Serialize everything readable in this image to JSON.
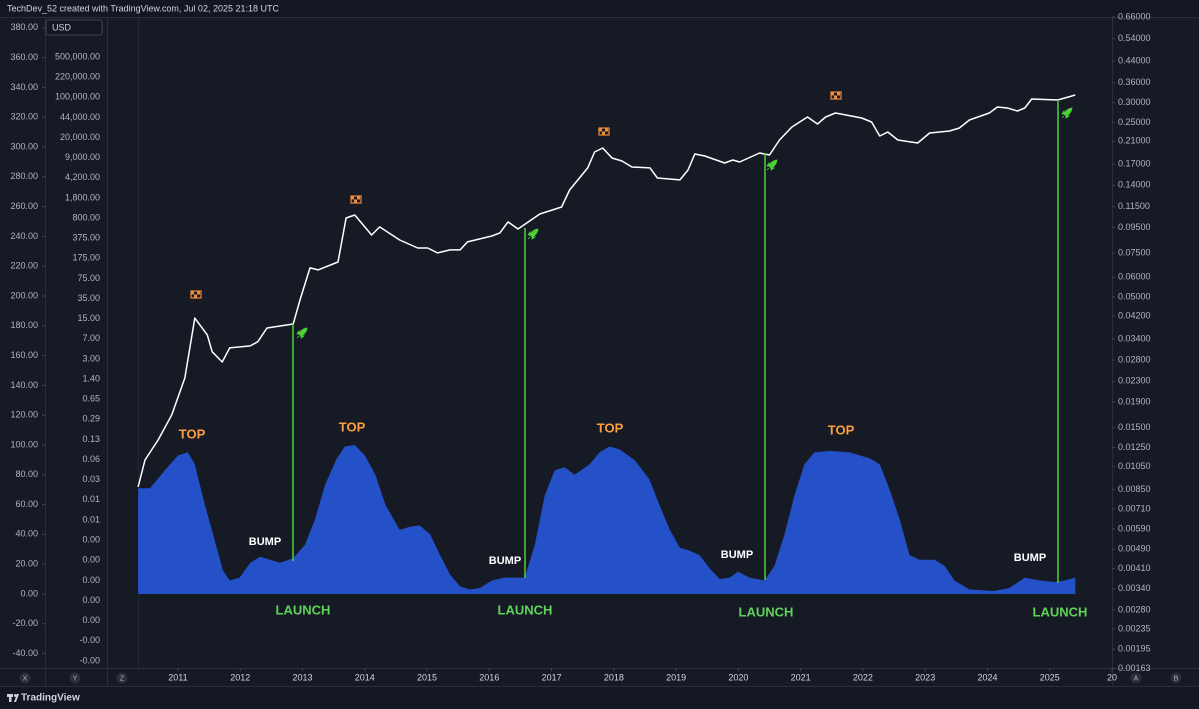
{
  "header": "TechDev_52 created with TradingView.com, Jul 02, 2025 21:18 UTC",
  "currency": "USD",
  "footer": "TradingView",
  "axis_buttons": [
    "X",
    "Y",
    "Z",
    "A",
    "B"
  ],
  "price_axis_labels": [
    "500,000.00",
    "220,000.00",
    "100,000.00",
    "44,000.00",
    "20,000.00",
    "9,000.00",
    "4,200.00",
    "1,800.00",
    "800.00",
    "375.00",
    "175.00",
    "75.00",
    "35.00",
    "15.00",
    "7.00",
    "3.00",
    "1.40",
    "0.65",
    "0.29",
    "0.13",
    "0.06",
    "0.03",
    "0.01",
    "0.01",
    "0.00",
    "0.00",
    "0.00",
    "0.00",
    "0.00",
    "-0.00",
    "-0.00"
  ],
  "chart_data": {
    "type": "line",
    "xlim": [
      2009.86,
      2026.0
    ],
    "xticks": [
      2011,
      2012,
      2013,
      2014,
      2015,
      2016,
      2017,
      2018,
      2019,
      2020,
      2021,
      2022,
      2023,
      2024,
      2025,
      {
        "value": 2026,
        "label": "20"
      }
    ],
    "ylim": [
      -49.7,
      386.6
    ],
    "yticks": [
      {
        "value": 380,
        "label": "380.00"
      },
      {
        "value": 360,
        "label": "360.00"
      },
      {
        "value": 340,
        "label": "340.00"
      },
      {
        "value": 320,
        "label": "320.00"
      },
      {
        "value": 300,
        "label": "300.00"
      },
      {
        "value": 280,
        "label": "280.00"
      },
      {
        "value": 260,
        "label": "260.00"
      },
      {
        "value": 240,
        "label": "240.00"
      },
      {
        "value": 220,
        "label": "220.00"
      },
      {
        "value": 200,
        "label": "200.00"
      },
      {
        "value": 180,
        "label": "180.00"
      },
      {
        "value": 160,
        "label": "160.00"
      },
      {
        "value": 140,
        "label": "140.00"
      },
      {
        "value": 120,
        "label": "120.00"
      },
      {
        "value": 100,
        "label": "100.00"
      },
      {
        "value": 80,
        "label": "80.00"
      },
      {
        "value": 60,
        "label": "60.00"
      },
      {
        "value": 40,
        "label": "40.00"
      },
      {
        "value": 20,
        "label": "20.00"
      },
      {
        "value": 0,
        "label": "0.00"
      },
      {
        "value": -20,
        "label": "-20.00"
      },
      {
        "value": -40,
        "label": "-40.00"
      }
    ],
    "y2lim": [
      0.00164,
      0.654
    ],
    "y2log": true,
    "y2ticks": [
      {
        "value": 0.66,
        "label": "0.66000"
      },
      {
        "value": 0.54,
        "label": "0.54000"
      },
      {
        "value": 0.44,
        "label": "0.44000"
      },
      {
        "value": 0.36,
        "label": "0.36000"
      },
      {
        "value": 0.3,
        "label": "0.30000"
      },
      {
        "value": 0.25,
        "label": "0.25000"
      },
      {
        "value": 0.21,
        "label": "0.21000"
      },
      {
        "value": 0.17,
        "label": "0.17000"
      },
      {
        "value": 0.14,
        "label": "0.14000"
      },
      {
        "value": 0.115,
        "label": "0.11500"
      },
      {
        "value": 0.095,
        "label": "0.09500"
      },
      {
        "value": 0.075,
        "label": "0.07500"
      },
      {
        "value": 0.06,
        "label": "0.06000"
      },
      {
        "value": 0.05,
        "label": "0.05000"
      },
      {
        "value": 0.042,
        "label": "0.04200"
      },
      {
        "value": 0.034,
        "label": "0.03400"
      },
      {
        "value": 0.028,
        "label": "0.02800"
      },
      {
        "value": 0.023,
        "label": "0.02300"
      },
      {
        "value": 0.019,
        "label": "0.01900"
      },
      {
        "value": 0.015,
        "label": "0.01500"
      },
      {
        "value": 0.0125,
        "label": "0.01250"
      },
      {
        "value": 0.0105,
        "label": "0.01050"
      },
      {
        "value": 0.0085,
        "label": "0.00850"
      },
      {
        "value": 0.0071,
        "label": "0.00710"
      },
      {
        "value": 0.0059,
        "label": "0.00590"
      },
      {
        "value": 0.0049,
        "label": "0.00490"
      },
      {
        "value": 0.0041,
        "label": "0.00410"
      },
      {
        "value": 0.0034,
        "label": "0.00340"
      },
      {
        "value": 0.0028,
        "label": "0.00280"
      },
      {
        "value": 0.00235,
        "label": "0.00235"
      },
      {
        "value": 0.00195,
        "label": "0.00195"
      },
      {
        "value": 0.00163,
        "label": "0.00163"
      }
    ],
    "series": [
      {
        "type": "line",
        "axis": "y2",
        "color": "#ffffff",
        "x": [
          2010.36,
          2010.47,
          2010.68,
          2010.9,
          2011.11,
          2011.27,
          2011.47,
          2011.55,
          2011.71,
          2011.83,
          2012.16,
          2012.28,
          2012.43,
          2012.85,
          2012.96,
          2013.12,
          2013.25,
          2013.57,
          2013.7,
          2013.84,
          2014.11,
          2014.24,
          2014.56,
          2014.85,
          2015.01,
          2015.17,
          2015.37,
          2015.53,
          2015.65,
          2016.04,
          2016.17,
          2016.3,
          2016.46,
          2016.81,
          2017.16,
          2017.29,
          2017.58,
          2017.69,
          2017.82,
          2017.97,
          2018.13,
          2018.29,
          2018.58,
          2018.7,
          2019.06,
          2019.19,
          2019.3,
          2019.46,
          2019.78,
          2019.91,
          2020.02,
          2020.34,
          2020.5,
          2020.66,
          2020.86,
          2021.11,
          2021.27,
          2021.4,
          2021.56,
          2021.98,
          2022.14,
          2022.27,
          2022.4,
          2022.56,
          2022.88,
          2023.07,
          2023.39,
          2023.55,
          2023.71,
          2024.03,
          2024.16,
          2024.32,
          2024.48,
          2024.6,
          2024.71,
          2025.13,
          2025.41
        ],
        "values": [
          0.0087,
          0.01115,
          0.0134,
          0.0169,
          0.0237,
          0.0412,
          0.0353,
          0.0302,
          0.0275,
          0.0313,
          0.0319,
          0.0331,
          0.0376,
          0.039,
          0.0487,
          0.0654,
          0.0642,
          0.0691,
          0.1036,
          0.1065,
          0.0886,
          0.0954,
          0.0846,
          0.0786,
          0.0786,
          0.0751,
          0.0772,
          0.0772,
          0.0831,
          0.0878,
          0.0903,
          0.0999,
          0.0936,
          0.1075,
          0.1147,
          0.1341,
          0.1643,
          0.1903,
          0.1975,
          0.1801,
          0.1752,
          0.1658,
          0.1643,
          0.1498,
          0.1471,
          0.1612,
          0.1868,
          0.1834,
          0.172,
          0.1768,
          0.1736,
          0.1886,
          0.1851,
          0.2126,
          0.2396,
          0.2627,
          0.2463,
          0.2627,
          0.2726,
          0.2603,
          0.2509,
          0.2205,
          0.2288,
          0.2126,
          0.2068,
          0.2267,
          0.2309,
          0.2374,
          0.2555,
          0.2726,
          0.2881,
          0.2854,
          0.2776,
          0.2854,
          0.3101,
          0.3072,
          0.3217
        ]
      },
      {
        "type": "area",
        "color": "#2450c8",
        "x": [
          2010.36,
          2010.55,
          2010.79,
          2011.0,
          2011.16,
          2011.27,
          2011.43,
          2011.59,
          2011.72,
          2011.83,
          2011.99,
          2012.16,
          2012.32,
          2012.48,
          2012.64,
          2012.85,
          2013.04,
          2013.2,
          2013.36,
          2013.54,
          2013.68,
          2013.84,
          2014.0,
          2014.17,
          2014.33,
          2014.56,
          2014.72,
          2014.88,
          2015.05,
          2015.21,
          2015.37,
          2015.53,
          2015.69,
          2015.85,
          2016.04,
          2016.25,
          2016.57,
          2016.73,
          2016.89,
          2017.05,
          2017.21,
          2017.37,
          2017.61,
          2017.77,
          2017.93,
          2018.09,
          2018.33,
          2018.57,
          2018.73,
          2018.9,
          2019.06,
          2019.22,
          2019.38,
          2019.54,
          2019.7,
          2019.86,
          2019.99,
          2020.18,
          2020.42,
          2020.58,
          2020.74,
          2020.9,
          2021.06,
          2021.22,
          2021.47,
          2021.79,
          2022.11,
          2022.27,
          2022.43,
          2022.59,
          2022.75,
          2022.91,
          2023.15,
          2023.31,
          2023.47,
          2023.71,
          2024.11,
          2024.35,
          2024.6,
          2024.84,
          2025.08,
          2025.24,
          2025.41
        ],
        "values": [
          71,
          71,
          83,
          93,
          95,
          87,
          60,
          36,
          16,
          9,
          11,
          21,
          25,
          23,
          21,
          24,
          33,
          50,
          73,
          90,
          99,
          100,
          93,
          80,
          60,
          43,
          45,
          46,
          40,
          26,
          13,
          5,
          3,
          4,
          9,
          11,
          11,
          33,
          66,
          83,
          85,
          80,
          87,
          95,
          99,
          97,
          90,
          77,
          60,
          43,
          31,
          29,
          26,
          17,
          10,
          11,
          15,
          11,
          9,
          19,
          40,
          66,
          87,
          95,
          96,
          95,
          91,
          87,
          70,
          50,
          26,
          23,
          23,
          19,
          9,
          3,
          2,
          4,
          11,
          9,
          8,
          9,
          11
        ]
      }
    ],
    "annotations": [
      "TOP",
      "BUMP",
      "LAUNCH",
      "TOP",
      "BUMP",
      "LAUNCH",
      "TOP",
      "BUMP",
      "LAUNCH",
      "TOP",
      "BUMP",
      "LAUNCH"
    ]
  }
}
